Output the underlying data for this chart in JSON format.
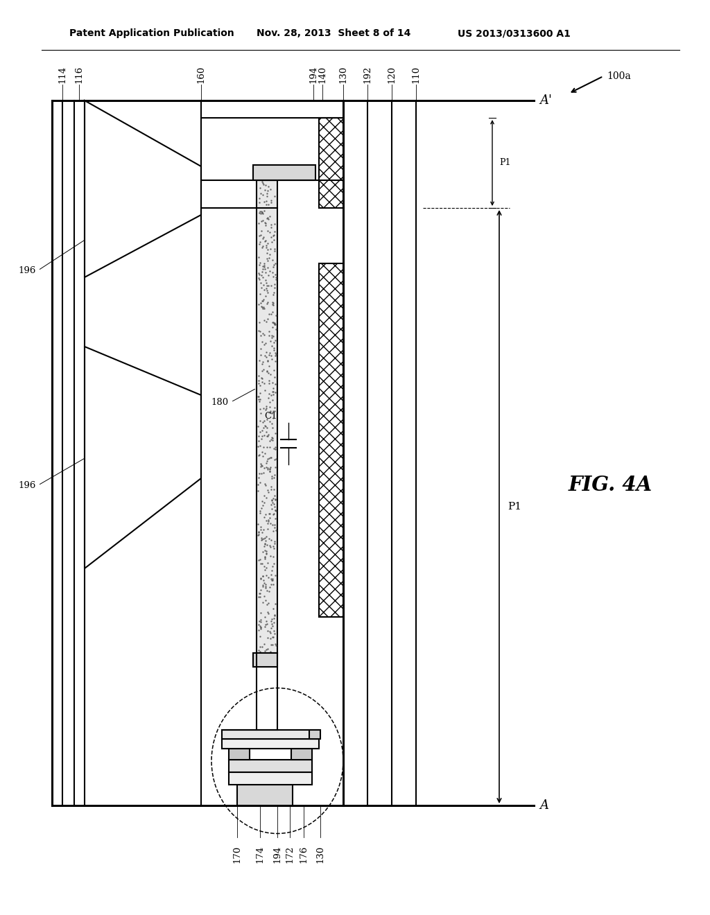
{
  "title_line1": "Patent Application Publication",
  "title_line2": "Nov. 28, 2013  Sheet 8 of 14",
  "title_line3": "US 2013/0313600 A1",
  "fig_label": "FIG. 4A",
  "bg_color": "#ffffff",
  "line_color": "#000000"
}
